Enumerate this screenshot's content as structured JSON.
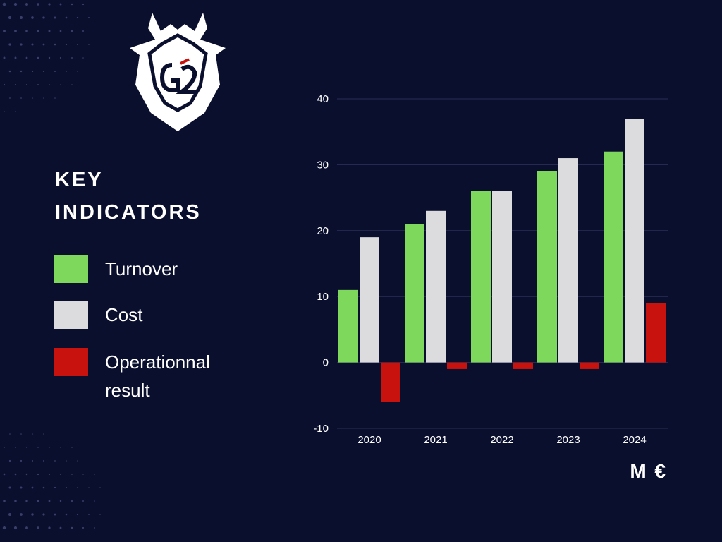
{
  "title_lines": [
    "KEY",
    "INDICATORS"
  ],
  "unit": "M €",
  "colors": {
    "background": "#0a0f2e",
    "turnover": "#7dd85b",
    "cost": "#dcdcde",
    "result": "#c8120e",
    "grid": "#2a2f55"
  },
  "legend": [
    {
      "label": "Turnover",
      "color": "#7dd85b"
    },
    {
      "label": "Cost",
      "color": "#dcdcde"
    },
    {
      "label": "Operationnal result",
      "color": "#c8120e"
    }
  ],
  "chart_data": {
    "type": "bar",
    "categories": [
      "2020",
      "2021",
      "2022",
      "2023",
      "2024"
    ],
    "series": [
      {
        "name": "Turnover",
        "values": [
          11,
          21,
          26,
          29,
          32
        ]
      },
      {
        "name": "Cost",
        "values": [
          19,
          23,
          26,
          31,
          37
        ]
      },
      {
        "name": "Operationnal result",
        "values": [
          -6,
          -1,
          -1,
          -1,
          9
        ]
      }
    ],
    "yticks": [
      40,
      30,
      20,
      10,
      0,
      -10
    ],
    "ylim": [
      -10,
      40
    ],
    "grid": true,
    "legend_position": "left"
  }
}
